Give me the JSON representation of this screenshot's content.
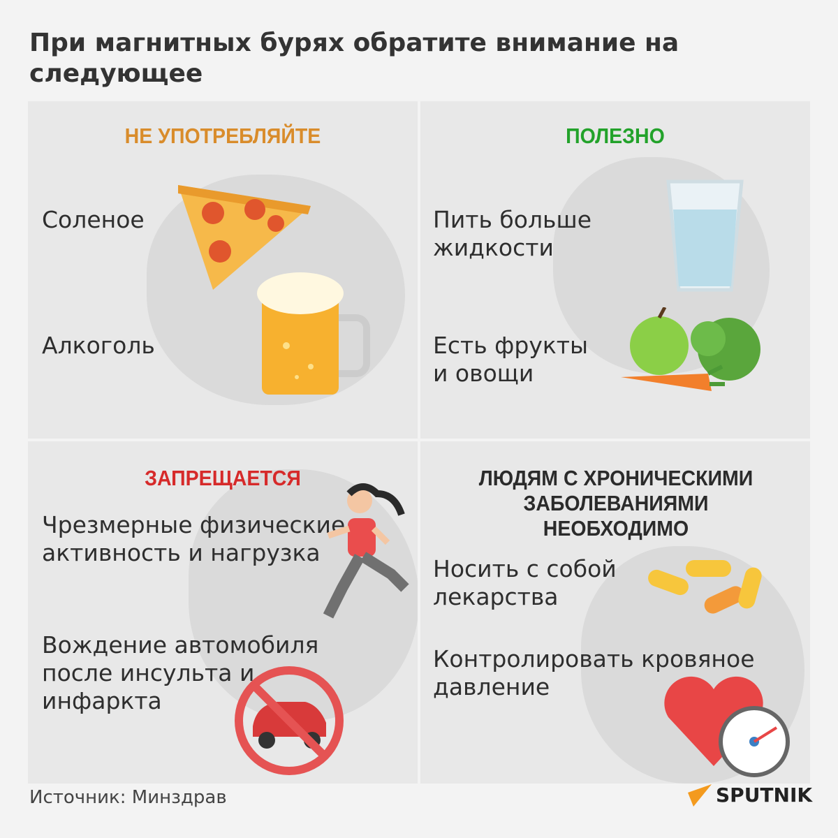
{
  "title": "При магнитных бурях обратите внимание на следующее",
  "quadrants": [
    {
      "heading": "НЕ УПОТРЕБЛЯЙТЕ",
      "color": "#d98c2b",
      "items": [
        "Соленое",
        "Алкоголь"
      ]
    },
    {
      "heading": "ПОЛЕЗНО",
      "color": "#22a22a",
      "items": [
        "Пить больше жидкости",
        "Есть фрукты и овощи"
      ]
    },
    {
      "heading": "ЗАПРЕЩАЕТСЯ",
      "color": "#d62a2a",
      "items": [
        "Чрезмерные физические активность и нагрузка",
        "Вождение автомобиля после инсульта и инфаркта"
      ]
    },
    {
      "heading": "ЛЮДЯМ С ХРОНИЧЕСКИМИ ЗАБОЛЕВАНИЯМИ НЕОБХОДИМО",
      "color": "#2b2b2b",
      "items": [
        "Носить с собой лекарства",
        "Контролировать кровяное давление"
      ]
    }
  ],
  "source": "Источник: Минздрав",
  "logo": "SPUTNIK"
}
